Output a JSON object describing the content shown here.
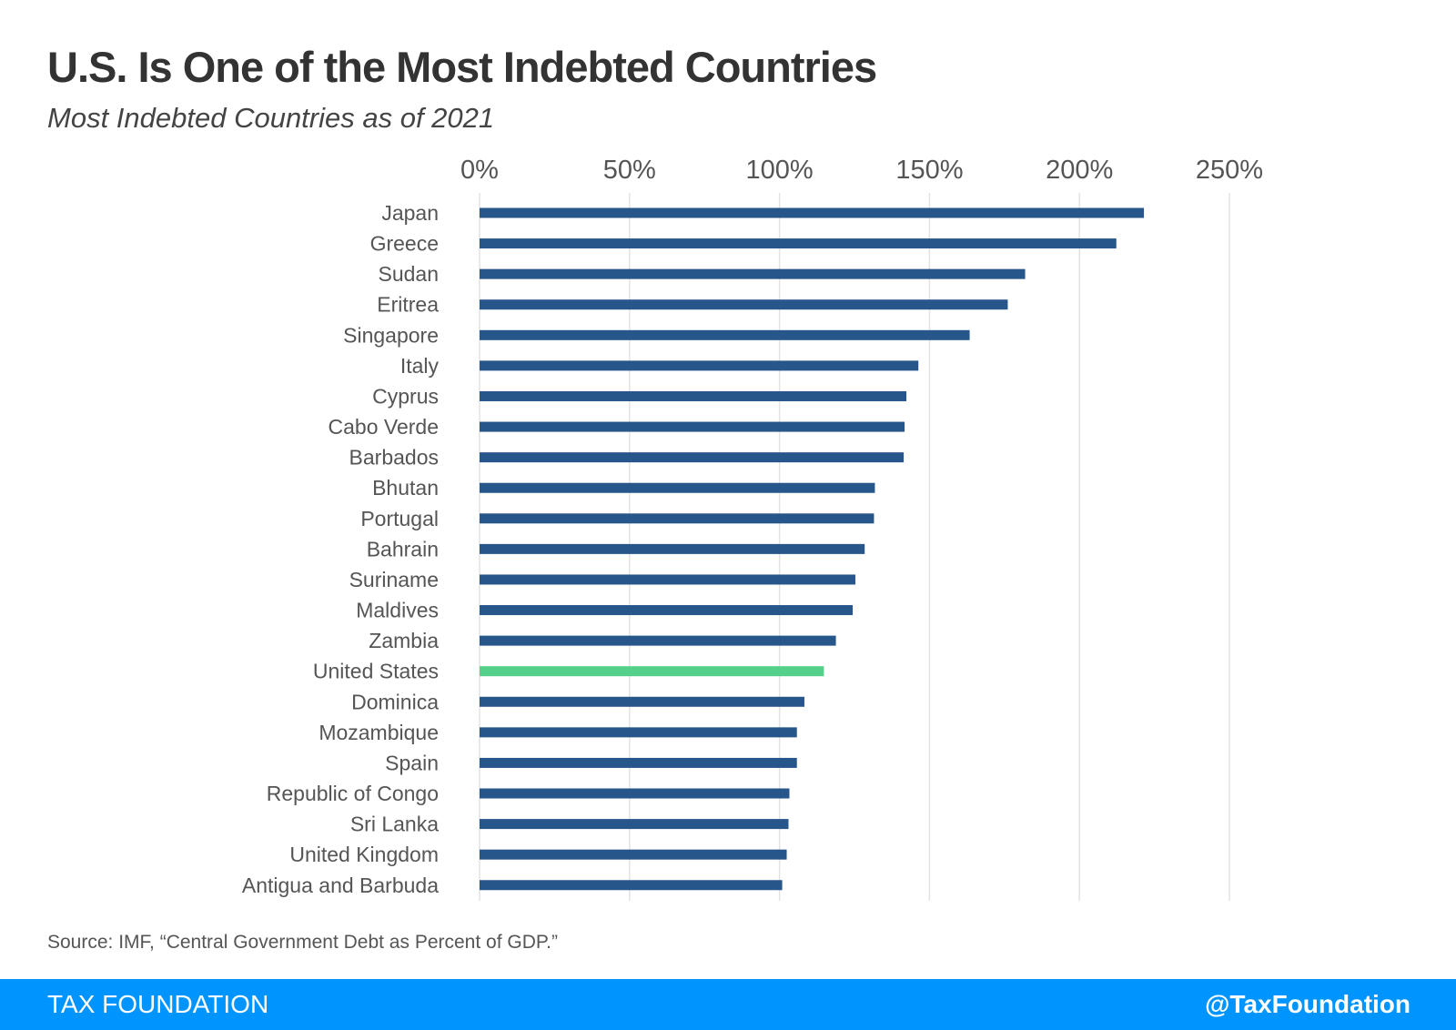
{
  "chart_data": {
    "type": "bar",
    "orientation": "horizontal",
    "title": "U.S. Is One of the Most Indebted Countries",
    "subtitle": "Most Indebted Countries as of 2021",
    "categories": [
      "Japan",
      "Greece",
      "Sudan",
      "Eritrea",
      "Singapore",
      "Italy",
      "Cyprus",
      "Cabo Verde",
      "Barbados",
      "Bhutan",
      "Portugal",
      "Bahrain",
      "Suriname",
      "Maldives",
      "Zambia",
      "United States",
      "Dominica",
      "Mozambique",
      "Spain",
      "Republic of Congo",
      "Sri Lanka",
      "United Kingdom",
      "Antigua and Barbuda"
    ],
    "values": [
      221.5,
      212.3,
      181.9,
      176.1,
      163.4,
      146.3,
      142.3,
      141.7,
      141.4,
      131.8,
      131.5,
      128.4,
      125.3,
      124.4,
      118.8,
      114.8,
      108.3,
      105.8,
      105.8,
      103.3,
      103.0,
      102.4,
      100.9
    ],
    "highlight": "United States",
    "xlim": [
      0,
      250
    ],
    "ticks": [
      0,
      50,
      100,
      150,
      200,
      250
    ],
    "tick_labels": [
      "0%",
      "50%",
      "100%",
      "150%",
      "200%",
      "250%"
    ],
    "axis_position": "top",
    "grid": true,
    "colors": {
      "bar": "#27568a",
      "highlight": "#55d08a",
      "grid": "#e3e3e3"
    }
  },
  "source": "Source: IMF, “Central Government Debt as Percent of GDP.”",
  "footer": {
    "brand": "TAX FOUNDATION",
    "handle": "@TaxFoundation",
    "color": "#0094ff"
  }
}
